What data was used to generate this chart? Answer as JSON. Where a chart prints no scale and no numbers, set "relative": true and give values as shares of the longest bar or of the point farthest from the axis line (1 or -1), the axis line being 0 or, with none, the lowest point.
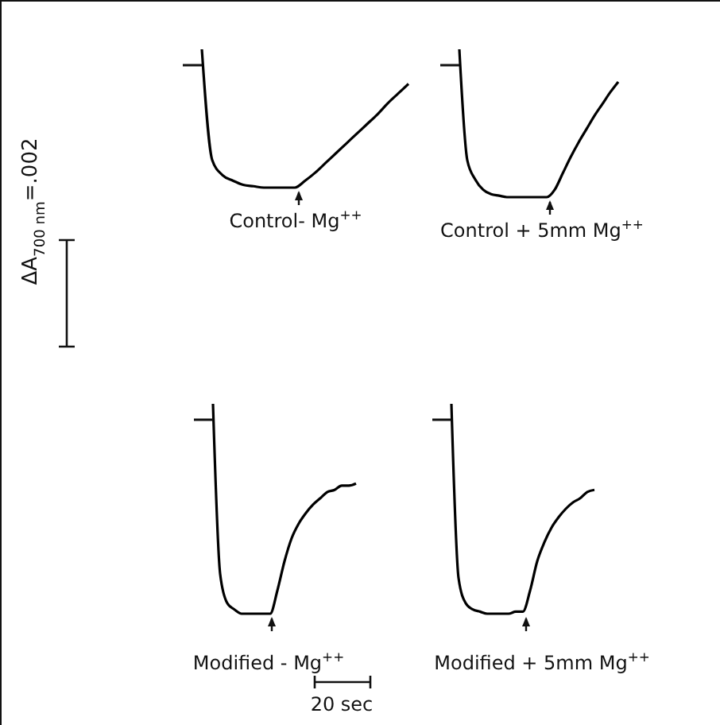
{
  "chart_data": [
    {
      "type": "line",
      "relative": true,
      "xlabel": "Control- Mg$^{++}$",
      "annotations": [
        "ΔA$_{700 nm}$=.002"
      ],
      "color": "#000000",
      "categories": [
        null,
        null,
        null,
        null,
        null,
        null,
        null,
        null,
        null,
        null,
        null,
        null,
        null,
        null,
        null,
        null,
        null,
        null,
        null,
        null,
        null
      ],
      "values": [
        1,
        0.2,
        0.09,
        0.05,
        0.02,
        0.01,
        0,
        0,
        0,
        0,
        0.05,
        0.11,
        0.18,
        0.25,
        0.32,
        0.39,
        0.46,
        0.53,
        0.61,
        0.68,
        0.75
      ]
    },
    {
      "type": "line",
      "relative": true,
      "xlabel": "Control + 5mm Mg$^{++}$",
      "color": "#000000",
      "categories": [
        null,
        null,
        null,
        null,
        null,
        null,
        null,
        null,
        null,
        null,
        null,
        null,
        null,
        null,
        null,
        null,
        null,
        null,
        null,
        null,
        null
      ],
      "values": [
        1,
        0.25,
        0.12,
        0.05,
        0.02,
        0.01,
        0,
        0,
        0,
        0,
        0,
        0,
        0.05,
        0.16,
        0.27,
        0.37,
        0.46,
        0.55,
        0.63,
        0.71,
        0.78
      ]
    },
    {
      "type": "line",
      "relative": true,
      "xlabel": "Modified - Mg$^{++}$",
      "annotations": [
        "20 sec"
      ],
      "color": "#000000",
      "categories": [
        null,
        null,
        null,
        null,
        null,
        null,
        null,
        null,
        null,
        null,
        null,
        null,
        null,
        null,
        null,
        null,
        null,
        null,
        null,
        null,
        null
      ],
      "values": [
        1,
        0.19,
        0.05,
        0.02,
        0,
        0,
        0,
        0,
        0,
        0.11,
        0.25,
        0.36,
        0.43,
        0.48,
        0.52,
        0.55,
        0.58,
        0.59,
        0.61,
        0.61,
        0.62
      ]
    },
    {
      "type": "line",
      "relative": true,
      "xlabel": "Modified + 5mm Mg$^{++}$",
      "color": "#000000",
      "categories": [
        null,
        null,
        null,
        null,
        null,
        null,
        null,
        null,
        null,
        null,
        null,
        null,
        null,
        null,
        null,
        null,
        null,
        null,
        null,
        null,
        null
      ],
      "values": [
        1,
        0.17,
        0.05,
        0.02,
        0.01,
        0,
        0,
        0,
        0,
        0.01,
        0.01,
        0.11,
        0.25,
        0.34,
        0.41,
        0.46,
        0.5,
        0.53,
        0.55,
        0.58,
        0.59
      ]
    }
  ]
}
